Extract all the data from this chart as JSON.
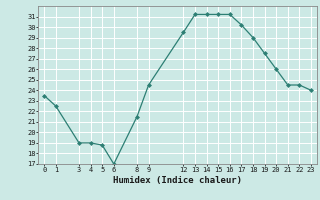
{
  "x": [
    0,
    1,
    3,
    4,
    5,
    6,
    8,
    9,
    12,
    13,
    14,
    15,
    16,
    17,
    18,
    19,
    20,
    21,
    22,
    23
  ],
  "y": [
    23.5,
    22.5,
    19.0,
    19.0,
    18.8,
    17.0,
    21.5,
    24.5,
    29.5,
    31.2,
    31.2,
    31.2,
    31.2,
    30.2,
    29.0,
    27.5,
    26.0,
    24.5,
    24.5,
    24.0
  ],
  "xlabel": "Humidex (Indice chaleur)",
  "ylim": [
    17,
    32
  ],
  "xlim": [
    -0.5,
    23.5
  ],
  "yticks": [
    17,
    18,
    19,
    20,
    21,
    22,
    23,
    24,
    25,
    26,
    27,
    28,
    29,
    30,
    31
  ],
  "xticks": [
    0,
    1,
    3,
    4,
    5,
    6,
    8,
    9,
    12,
    13,
    14,
    15,
    16,
    17,
    18,
    19,
    20,
    21,
    22,
    23
  ],
  "line_color": "#2d7f74",
  "marker_color": "#2d7f74",
  "bg_color": "#cce9e5",
  "grid_color": "#ffffff",
  "spine_color": "#888888"
}
